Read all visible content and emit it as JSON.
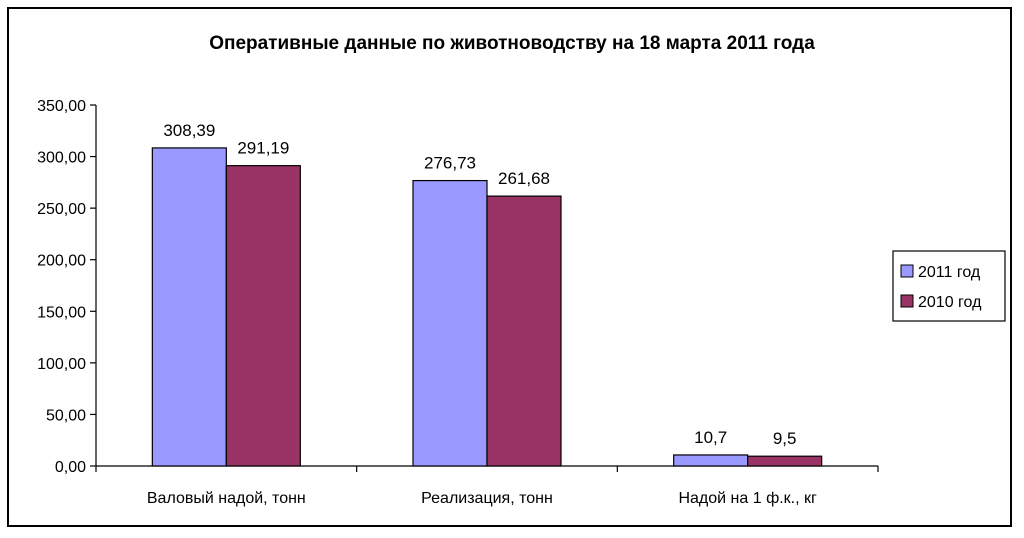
{
  "chart_data": {
    "type": "bar",
    "title": "Оперативные данные по животноводству на 18 марта 2011 года",
    "categories": [
      "Валовый надой, тонн",
      "Реализация, тонн",
      "Надой на 1 ф.к., кг"
    ],
    "series": [
      {
        "name": "2011 год",
        "values": [
          308.39,
          276.73,
          10.7
        ],
        "labels": [
          "308,39",
          "276,73",
          "10,7"
        ],
        "color": "#9999ff"
      },
      {
        "name": "2010 год",
        "values": [
          291.19,
          261.68,
          9.5
        ],
        "labels": [
          "291,19",
          "261,68",
          "9,5"
        ],
        "color": "#993366"
      }
    ],
    "ylim": [
      0,
      350
    ],
    "yticks": [
      0,
      50,
      100,
      150,
      200,
      250,
      300,
      350
    ],
    "ytick_labels": [
      "0,00",
      "50,00",
      "100,00",
      "150,00",
      "200,00",
      "250,00",
      "300,00",
      "350,00"
    ],
    "legend": "right",
    "grid": false
  }
}
